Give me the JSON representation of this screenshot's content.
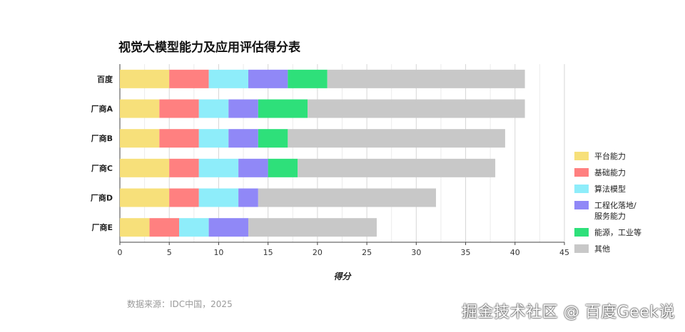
{
  "chart_data": {
    "type": "bar",
    "orientation": "horizontal",
    "stacked": true,
    "title": "视觉大模型能力及应用评估得分表",
    "xlabel": "得分",
    "ylabel": "",
    "xlim": [
      0,
      45
    ],
    "x_ticks": [
      0,
      5,
      10,
      15,
      20,
      25,
      30,
      35,
      40,
      45
    ],
    "grid": "vertical",
    "legend_position": "right",
    "categories": [
      "百度",
      "厂商A",
      "厂商B",
      "厂商C",
      "厂商D",
      "厂商E"
    ],
    "series": [
      {
        "name": "平台能力",
        "color": "#F7E07A",
        "values": [
          5,
          4,
          4,
          5,
          5,
          3
        ]
      },
      {
        "name": "基础能力",
        "color": "#FF8080",
        "values": [
          4,
          4,
          4,
          3,
          3,
          3
        ]
      },
      {
        "name": "算法模型",
        "color": "#8EEDFA",
        "values": [
          4,
          3,
          3,
          4,
          4,
          3
        ]
      },
      {
        "name": "工程化落地/服务能力",
        "color": "#9088F7",
        "values": [
          4,
          3,
          3,
          3,
          2,
          4
        ]
      },
      {
        "name": "能源，工业等",
        "color": "#2EE07A",
        "values": [
          4,
          5,
          3,
          3,
          0,
          0
        ]
      },
      {
        "name": "其他",
        "color": "#C8C8C8",
        "values": [
          20,
          22,
          22,
          20,
          18,
          13
        ]
      }
    ]
  },
  "source_note": "数据来源：IDC中国，2025",
  "watermark": "掘金技术社区 @ 百度Geek说"
}
